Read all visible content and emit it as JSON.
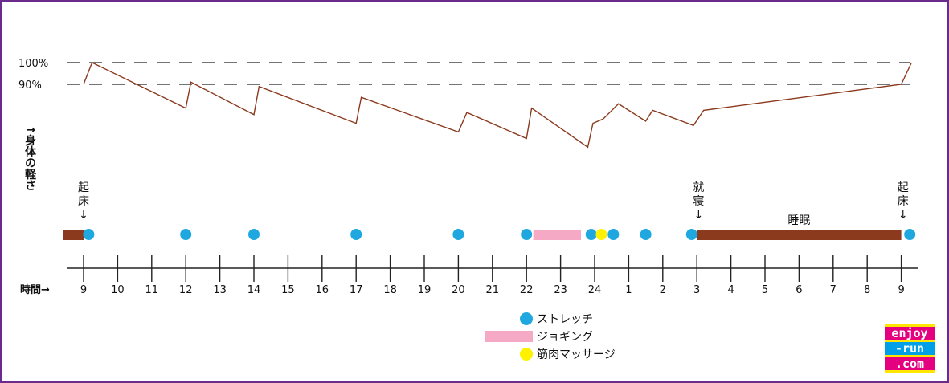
{
  "chart_data": {
    "type": "line",
    "title": "",
    "ylabel": "↑身体の軽さ",
    "xlabel": "時間→",
    "y_tick_labels": [
      "100%",
      "90%"
    ],
    "x_tick_labels": [
      "9",
      "10",
      "11",
      "12",
      "13",
      "14",
      "15",
      "16",
      "17",
      "18",
      "19",
      "20",
      "21",
      "22",
      "23",
      "24",
      "1",
      "2",
      "3",
      "4",
      "5",
      "6",
      "7",
      "8",
      "9"
    ],
    "grid": "dashed horizontal reference lines at 100% and 90%",
    "lightness_curve_hours": [
      [
        9,
        90
      ],
      [
        9.25,
        100
      ],
      [
        12,
        79
      ],
      [
        12.15,
        91
      ],
      [
        14,
        76
      ],
      [
        14.15,
        89
      ],
      [
        17,
        72
      ],
      [
        17.15,
        84
      ],
      [
        20,
        68
      ],
      [
        20.25,
        77
      ],
      [
        22,
        65
      ],
      [
        22.15,
        79
      ],
      [
        23.8,
        61
      ],
      [
        23.95,
        72
      ],
      [
        24.25,
        74
      ],
      [
        24.7,
        81
      ],
      [
        25.5,
        73
      ],
      [
        25.7,
        78
      ],
      [
        26.9,
        71
      ],
      [
        27.2,
        78
      ],
      [
        33,
        90
      ],
      [
        33.3,
        100
      ]
    ],
    "annotations": {
      "wake_start": "起\n床\n↓",
      "bedtime": "就\n寝\n↓",
      "wake_end": "起\n床\n↓",
      "sleep_label": "睡眠"
    },
    "sleep_bars": [
      {
        "start": 8.4,
        "end": 9.0
      },
      {
        "start": 27.0,
        "end": 33.0
      }
    ],
    "jogging_bar": {
      "start": 22.2,
      "end": 23.6
    },
    "stretch_points": [
      9.15,
      12,
      14,
      17,
      20,
      22,
      23.9,
      24.55,
      25.5,
      26.85,
      33.25
    ],
    "massage_points": [
      24.2
    ],
    "legend": {
      "placement": "bottom-center",
      "items": [
        {
          "name": "ストレッチ",
          "marker": "circle",
          "color": "#1fa8e0"
        },
        {
          "name": "ジョギング",
          "marker": "bar",
          "color": "#f5a9c4"
        },
        {
          "name": "筋肉マッサージ",
          "marker": "circle",
          "color": "#fff200"
        }
      ]
    },
    "colors": {
      "curve": "#8b3a1e",
      "sleep": "#8b3a1e",
      "stretch": "#1fa8e0",
      "jogging": "#f5a9c4",
      "massage": "#fff200",
      "frame": "#6a2b8c"
    }
  },
  "logo": {
    "lines": [
      "enjoy",
      "-run",
      ".com"
    ]
  }
}
